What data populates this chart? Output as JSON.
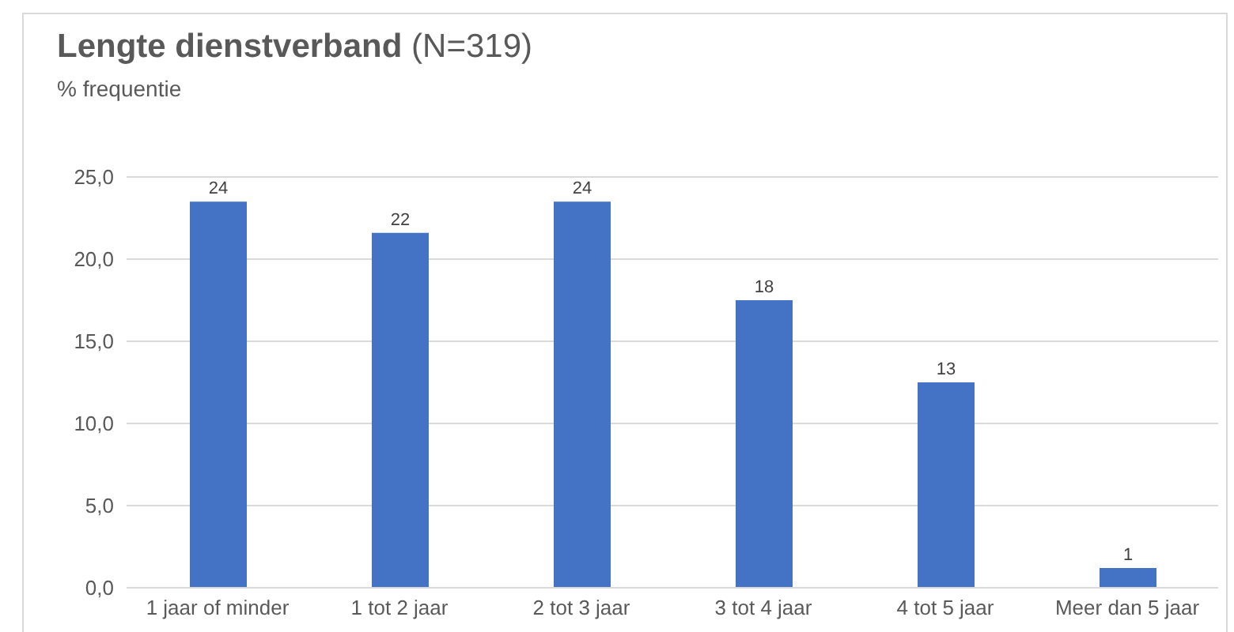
{
  "chart_data": {
    "type": "bar",
    "title": "Lengte dienstverband (N=319)",
    "subtitle": "% frequentie",
    "categories": [
      "1 jaar of minder",
      "1 tot 2 jaar",
      "2 tot 3 jaar",
      "3 tot 4 jaar",
      "4 tot 5 jaar",
      "Meer dan 5 jaar"
    ],
    "values": [
      23.5,
      21.6,
      23.5,
      17.5,
      12.5,
      1.2
    ],
    "value_labels": [
      "24",
      "22",
      "24",
      "18",
      "13",
      "1"
    ],
    "color": "#4472c4",
    "ylim": [
      0,
      25
    ],
    "yticks": [
      {
        "value": 0,
        "label": "0,0"
      },
      {
        "value": 5,
        "label": "5,0"
      },
      {
        "value": 10,
        "label": "10,0"
      },
      {
        "value": 15,
        "label": "15,0"
      },
      {
        "value": 20,
        "label": "20,0"
      },
      {
        "value": 25,
        "label": "25,0"
      }
    ],
    "grid": "y"
  }
}
